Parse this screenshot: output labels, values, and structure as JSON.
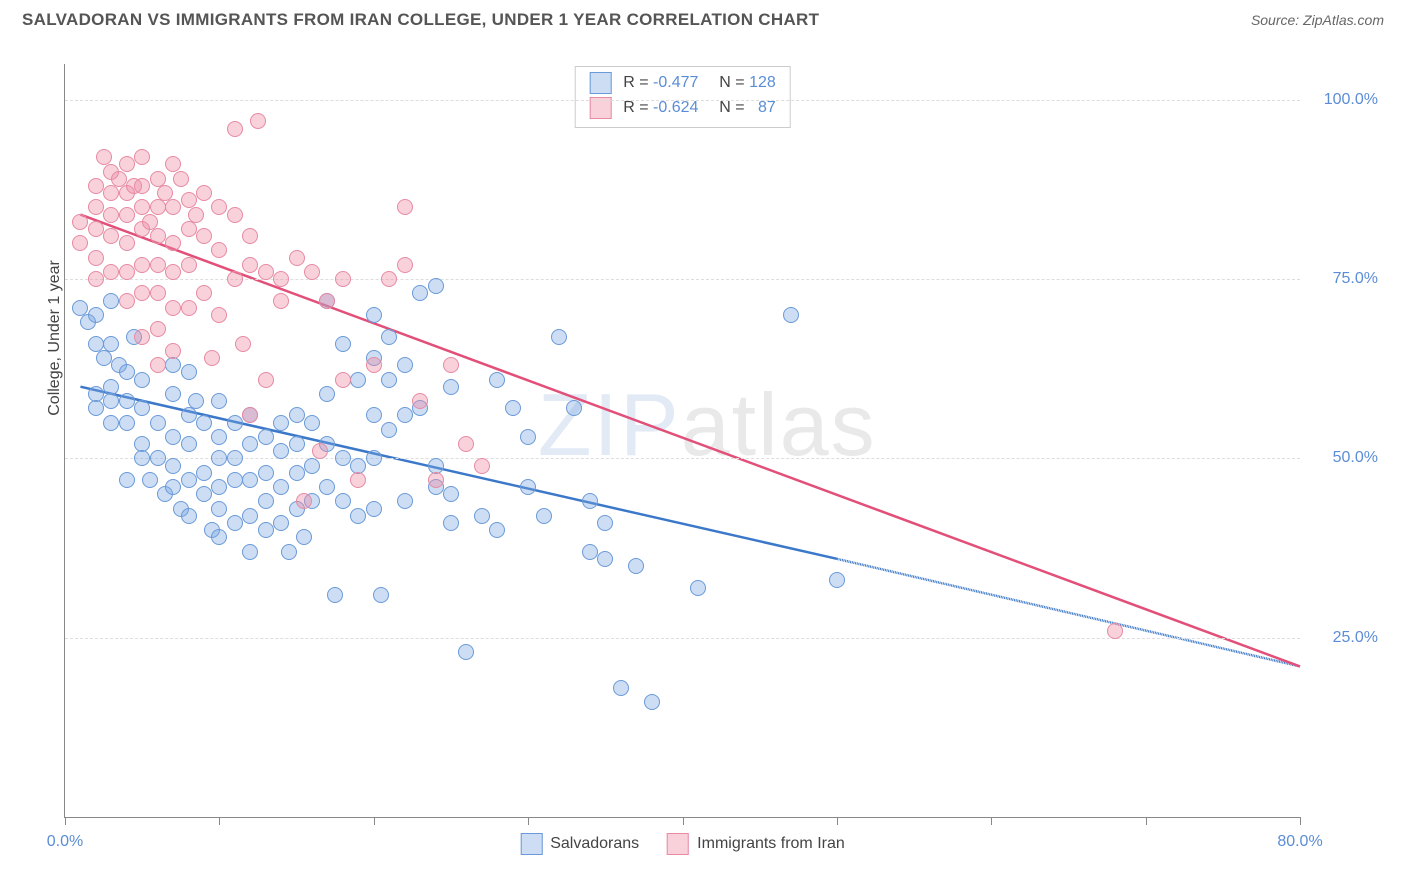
{
  "chart": {
    "type": "scatter",
    "title": "SALVADORAN VS IMMIGRANTS FROM IRAN COLLEGE, UNDER 1 YEAR CORRELATION CHART",
    "source_label": "Source: ZipAtlas.com",
    "ylabel": "College, Under 1 year",
    "watermark": {
      "part_a": "ZIP",
      "part_b": "atlas"
    },
    "xlim": [
      0,
      80
    ],
    "ylim": [
      0,
      105
    ],
    "background_color": "#ffffff",
    "grid_color": "#dddddd",
    "axis_color": "#888888",
    "tick_label_color": "#5b8dd6",
    "x_ticks": [
      0,
      10,
      20,
      30,
      40,
      50,
      60,
      70,
      80
    ],
    "x_tick_labels": {
      "0": "0.0%",
      "80": "80.0%"
    },
    "y_gridlines": [
      25,
      50,
      75,
      100
    ],
    "y_tick_labels": {
      "25": "25.0%",
      "50": "50.0%",
      "75": "75.0%",
      "100": "100.0%"
    },
    "marker_radius": 8,
    "series": [
      {
        "id": "salvadorans",
        "label": "Salvadorans",
        "fill_color": "rgba(120,165,225,0.38)",
        "stroke_color": "#6a9ad8",
        "trend_color": "#3b78c9",
        "trend_width": 2.5,
        "R": "-0.477",
        "N": "128",
        "trend": {
          "x1": 1,
          "y1": 60,
          "x2_solid": 50,
          "y2_solid": 36,
          "x2_dash": 80,
          "y2_dash": 21
        },
        "points": [
          [
            1,
            71
          ],
          [
            1.5,
            69
          ],
          [
            2,
            70
          ],
          [
            2,
            66
          ],
          [
            2,
            59
          ],
          [
            2,
            57
          ],
          [
            2.5,
            64
          ],
          [
            3,
            72
          ],
          [
            3,
            66
          ],
          [
            3,
            60
          ],
          [
            3,
            58
          ],
          [
            3,
            55
          ],
          [
            3.5,
            63
          ],
          [
            4,
            62
          ],
          [
            4,
            58
          ],
          [
            4,
            55
          ],
          [
            4,
            47
          ],
          [
            4.5,
            67
          ],
          [
            5,
            61
          ],
          [
            5,
            57
          ],
          [
            5,
            52
          ],
          [
            5,
            50
          ],
          [
            5.5,
            47
          ],
          [
            6,
            55
          ],
          [
            6,
            50
          ],
          [
            6.5,
            45
          ],
          [
            7,
            63
          ],
          [
            7,
            59
          ],
          [
            7,
            53
          ],
          [
            7,
            49
          ],
          [
            7,
            46
          ],
          [
            7.5,
            43
          ],
          [
            8,
            62
          ],
          [
            8,
            56
          ],
          [
            8,
            52
          ],
          [
            8,
            47
          ],
          [
            8,
            42
          ],
          [
            8.5,
            58
          ],
          [
            9,
            55
          ],
          [
            9,
            48
          ],
          [
            9,
            45
          ],
          [
            9.5,
            40
          ],
          [
            10,
            58
          ],
          [
            10,
            53
          ],
          [
            10,
            50
          ],
          [
            10,
            46
          ],
          [
            10,
            43
          ],
          [
            10,
            39
          ],
          [
            11,
            55
          ],
          [
            11,
            50
          ],
          [
            11,
            47
          ],
          [
            11,
            41
          ],
          [
            12,
            56
          ],
          [
            12,
            52
          ],
          [
            12,
            47
          ],
          [
            12,
            42
          ],
          [
            12,
            37
          ],
          [
            13,
            53
          ],
          [
            13,
            48
          ],
          [
            13,
            44
          ],
          [
            13,
            40
          ],
          [
            14,
            55
          ],
          [
            14,
            51
          ],
          [
            14,
            46
          ],
          [
            14,
            41
          ],
          [
            14.5,
            37
          ],
          [
            15,
            56
          ],
          [
            15,
            52
          ],
          [
            15,
            48
          ],
          [
            15,
            43
          ],
          [
            15.5,
            39
          ],
          [
            16,
            55
          ],
          [
            16,
            49
          ],
          [
            16,
            44
          ],
          [
            17,
            72
          ],
          [
            17,
            59
          ],
          [
            17,
            52
          ],
          [
            17,
            46
          ],
          [
            17.5,
            31
          ],
          [
            18,
            66
          ],
          [
            18,
            50
          ],
          [
            18,
            44
          ],
          [
            19,
            61
          ],
          [
            19,
            49
          ],
          [
            19,
            42
          ],
          [
            20,
            70
          ],
          [
            20,
            64
          ],
          [
            20,
            56
          ],
          [
            20,
            50
          ],
          [
            20,
            43
          ],
          [
            20.5,
            31
          ],
          [
            21,
            67
          ],
          [
            21,
            61
          ],
          [
            21,
            54
          ],
          [
            22,
            63
          ],
          [
            22,
            56
          ],
          [
            22,
            44
          ],
          [
            23,
            73
          ],
          [
            23,
            57
          ],
          [
            24,
            74
          ],
          [
            24,
            49
          ],
          [
            24,
            46
          ],
          [
            25,
            60
          ],
          [
            25,
            45
          ],
          [
            25,
            41
          ],
          [
            26,
            23
          ],
          [
            27,
            42
          ],
          [
            28,
            61
          ],
          [
            28,
            40
          ],
          [
            29,
            57
          ],
          [
            30,
            53
          ],
          [
            30,
            46
          ],
          [
            31,
            42
          ],
          [
            32,
            67
          ],
          [
            33,
            57
          ],
          [
            34,
            44
          ],
          [
            34,
            37
          ],
          [
            35,
            41
          ],
          [
            35,
            36
          ],
          [
            36,
            18
          ],
          [
            37,
            35
          ],
          [
            38,
            16
          ],
          [
            41,
            32
          ],
          [
            47,
            70
          ],
          [
            50,
            33
          ]
        ]
      },
      {
        "id": "iran",
        "label": "Immigrants from Iran",
        "fill_color": "rgba(238,140,165,0.40)",
        "stroke_color": "#e78aa3",
        "trend_color": "#e24f78",
        "trend_width": 2.5,
        "R": "-0.624",
        "N": "87",
        "trend": {
          "x1": 1,
          "y1": 84,
          "x2_solid": 80,
          "y2_solid": 21,
          "x2_dash": 80,
          "y2_dash": 21
        },
        "points": [
          [
            1,
            83
          ],
          [
            1,
            80
          ],
          [
            2,
            88
          ],
          [
            2,
            85
          ],
          [
            2,
            82
          ],
          [
            2,
            78
          ],
          [
            2,
            75
          ],
          [
            2.5,
            92
          ],
          [
            3,
            90
          ],
          [
            3,
            87
          ],
          [
            3,
            84
          ],
          [
            3,
            81
          ],
          [
            3,
            76
          ],
          [
            3.5,
            89
          ],
          [
            4,
            91
          ],
          [
            4,
            87
          ],
          [
            4,
            84
          ],
          [
            4,
            80
          ],
          [
            4,
            76
          ],
          [
            4,
            72
          ],
          [
            4.5,
            88
          ],
          [
            5,
            92
          ],
          [
            5,
            88
          ],
          [
            5,
            85
          ],
          [
            5,
            82
          ],
          [
            5,
            77
          ],
          [
            5,
            73
          ],
          [
            5,
            67
          ],
          [
            5.5,
            83
          ],
          [
            6,
            89
          ],
          [
            6,
            85
          ],
          [
            6,
            81
          ],
          [
            6,
            77
          ],
          [
            6,
            73
          ],
          [
            6,
            68
          ],
          [
            6,
            63
          ],
          [
            6.5,
            87
          ],
          [
            7,
            91
          ],
          [
            7,
            85
          ],
          [
            7,
            80
          ],
          [
            7,
            76
          ],
          [
            7,
            71
          ],
          [
            7,
            65
          ],
          [
            7.5,
            89
          ],
          [
            8,
            86
          ],
          [
            8,
            82
          ],
          [
            8,
            77
          ],
          [
            8,
            71
          ],
          [
            8.5,
            84
          ],
          [
            9,
            87
          ],
          [
            9,
            81
          ],
          [
            9,
            73
          ],
          [
            9.5,
            64
          ],
          [
            10,
            85
          ],
          [
            10,
            79
          ],
          [
            10,
            70
          ],
          [
            11,
            96
          ],
          [
            11,
            84
          ],
          [
            11,
            75
          ],
          [
            11.5,
            66
          ],
          [
            12,
            81
          ],
          [
            12,
            77
          ],
          [
            12,
            56
          ],
          [
            12.5,
            97
          ],
          [
            13,
            76
          ],
          [
            13,
            61
          ],
          [
            14,
            75
          ],
          [
            14,
            72
          ],
          [
            15,
            78
          ],
          [
            15.5,
            44
          ],
          [
            16,
            76
          ],
          [
            16.5,
            51
          ],
          [
            17,
            72
          ],
          [
            18,
            75
          ],
          [
            18,
            61
          ],
          [
            19,
            47
          ],
          [
            20,
            63
          ],
          [
            21,
            75
          ],
          [
            22,
            85
          ],
          [
            22,
            77
          ],
          [
            23,
            58
          ],
          [
            24,
            47
          ],
          [
            25,
            63
          ],
          [
            26,
            52
          ],
          [
            27,
            49
          ],
          [
            68,
            26
          ]
        ]
      }
    ]
  }
}
